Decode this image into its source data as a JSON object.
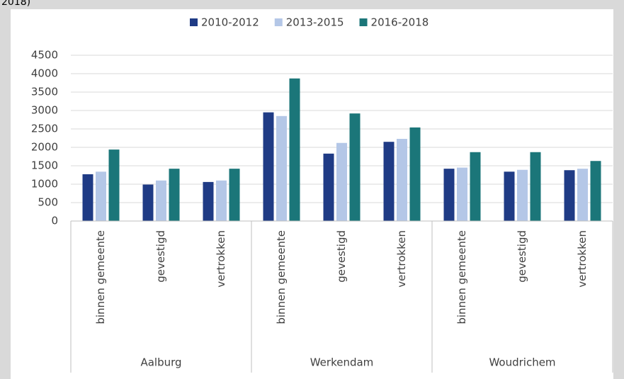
{
  "chart_data": {
    "type": "bar",
    "title": "2018)",
    "categories": [
      "binnen gemeente",
      "gevestigd",
      "vertrokken",
      "binnen gemeente",
      "gevestigd",
      "vertrokken",
      "binnen gemeente",
      "gevestigd",
      "vertrokken"
    ],
    "groups": [
      "Aalburg",
      "Werkendam",
      "Woudrichem"
    ],
    "series": [
      {
        "name": "2010-2012",
        "color": "#1f3b85",
        "values": [
          1270,
          990,
          1060,
          2950,
          1830,
          2150,
          1420,
          1340,
          1380
        ]
      },
      {
        "name": "2013-2015",
        "color": "#b4c7e7",
        "values": [
          1340,
          1100,
          1100,
          2850,
          2120,
          2230,
          1450,
          1390,
          1420
        ]
      },
      {
        "name": "2016-2018",
        "color": "#1b7679",
        "values": [
          1940,
          1420,
          1420,
          3870,
          2920,
          2540,
          1870,
          1870,
          1630
        ]
      }
    ],
    "ylim": [
      0,
      4500
    ],
    "yticks": [
      0,
      500,
      1000,
      1500,
      2000,
      2500,
      3000,
      3500,
      4000,
      4500
    ],
    "grid": true,
    "legend": "top"
  }
}
